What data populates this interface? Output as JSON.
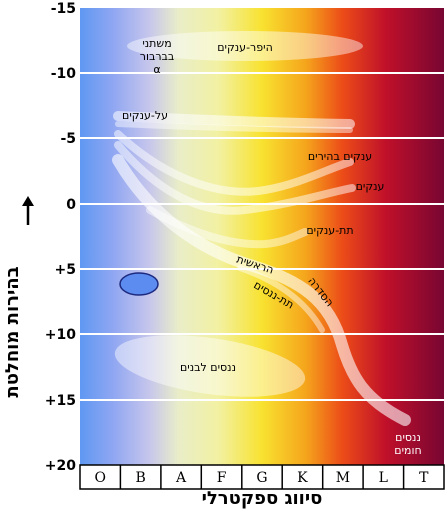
{
  "axes": {
    "y_title": "בהירות מוחלטת",
    "x_title": "סיווג ספקטרלי",
    "y_ticks": [
      "-15",
      "-10",
      "-5",
      "0",
      "+5",
      "+10",
      "+15",
      "+20"
    ],
    "x_ticks": [
      "O",
      "B",
      "A",
      "F",
      "G",
      "K",
      "M",
      "L",
      "T"
    ]
  },
  "regions": {
    "hypergiants": "היפר-ענקים",
    "variables_line1": "משתני",
    "variables_line2": "בברבור",
    "variables_line3": "α",
    "supergiants": "על-ענקים",
    "bright_giants": "ענקים בהירים",
    "giants": "ענקים",
    "subgiants": "תת-ענקים",
    "main_sequence_1": "הראשית",
    "main_sequence_2": "הסדרה",
    "subdwarfs": "תת-ננסים",
    "white_dwarfs": "ננסים לבנים",
    "brown_dwarfs_line1": "ננסים",
    "brown_dwarfs_line2": "חומים"
  },
  "colors": {
    "O": "#6fa0f0",
    "B": "#9aa6f0",
    "A": "#e8eccb",
    "F": "#f3f1a0",
    "G": "#f7e23a",
    "K": "#f59a18",
    "M": "#e8301c",
    "L": "#b00c2c",
    "T": "#7a0630"
  }
}
